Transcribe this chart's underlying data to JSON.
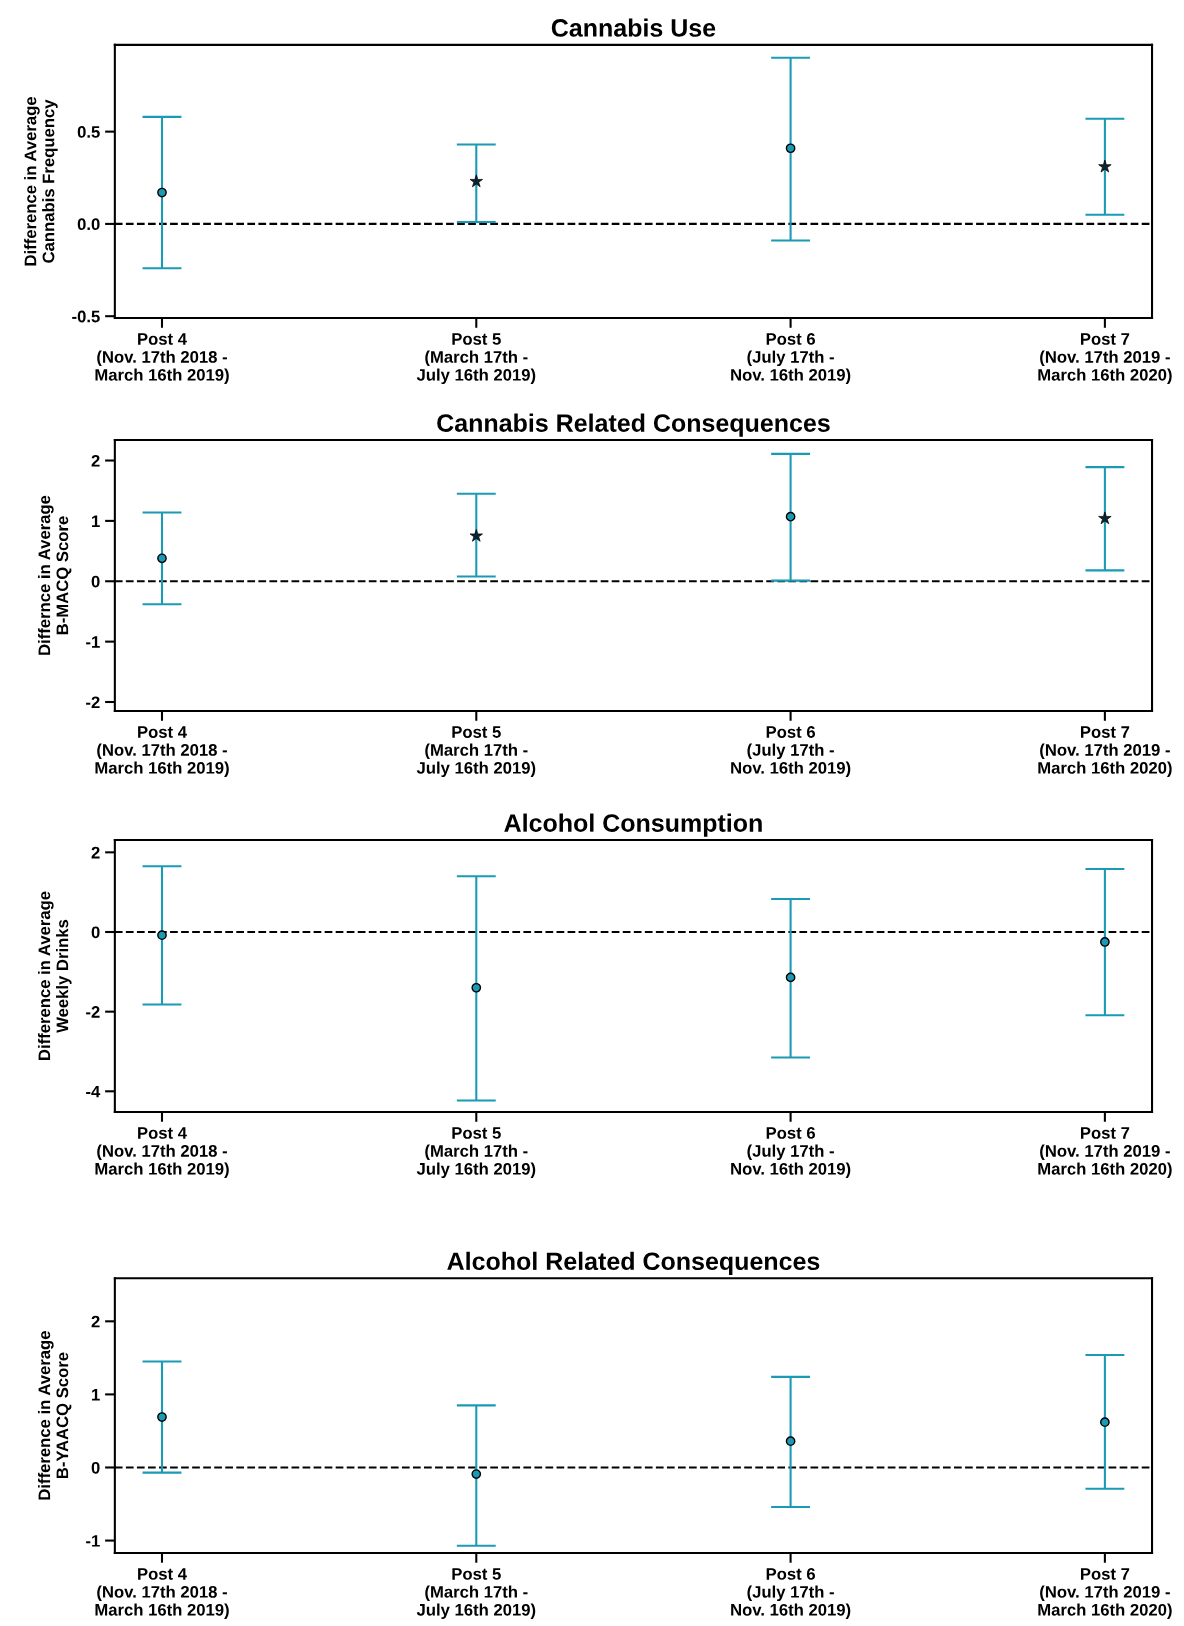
{
  "chart_data": [
    {
      "type": "scatter",
      "title": "Cannabis Use",
      "ylabel": "Difference in Average\nCannabis Frequency",
      "categories": [
        "Post 4\n(Nov. 17th 2018 -\nMarch 16th 2019)",
        "Post 5\n(March 17th -\nJuly 16th 2019)",
        "Post 6\n(July 17th -\nNov. 16th 2019)",
        "Post 7\n(Nov. 17th 2019 -\nMarch 16th 2020)"
      ],
      "series": [
        {
          "color": "#1a9ab4",
          "marker": "circle",
          "values": [
            0.17,
            null,
            0.41,
            null
          ],
          "errors": [
            [
              -0.24,
              0.58
            ],
            null,
            [
              -0.09,
              0.9
            ],
            null
          ]
        },
        {
          "color": "#0a2630",
          "marker": "star",
          "values": [
            null,
            0.23,
            null,
            0.31
          ],
          "errors": [
            null,
            [
              0.01,
              0.43
            ],
            null,
            [
              0.05,
              0.57
            ]
          ]
        }
      ],
      "ylim": [
        -0.51,
        0.97
      ],
      "yticks": [
        {
          "value": -0.5,
          "label": "-0.5"
        },
        {
          "value": 0,
          "label": "0.0"
        },
        {
          "value": 0.5,
          "label": "0.5"
        }
      ],
      "ref_lines": [
        {
          "axis": "y",
          "value": 0,
          "color": "#000000",
          "line_style": "dashed"
        }
      ],
      "grid": false,
      "legend": false
    },
    {
      "type": "scatter",
      "title": "Cannabis Related Consequences",
      "ylabel": "Differnce in Average\nB-MACQ Score",
      "categories": [
        "Post 4\n(Nov. 17th 2018 -\nMarch 16th 2019)",
        "Post 5\n(March 17th -\nJuly 16th 2019)",
        "Post 6\n(July 17th -\nNov. 16th 2019)",
        "Post 7\n(Nov. 17th 2019 -\nMarch 16th 2020)"
      ],
      "series": [
        {
          "color": "#1a9ab4",
          "marker": "circle",
          "values": [
            0.38,
            null,
            1.07,
            null
          ],
          "errors": [
            [
              -0.38,
              1.14
            ],
            null,
            [
              0.01,
              2.11
            ],
            null
          ]
        },
        {
          "color": "#0a2630",
          "marker": "star",
          "values": [
            null,
            0.75,
            null,
            1.04
          ],
          "errors": [
            null,
            [
              0.08,
              1.45
            ],
            null,
            [
              0.18,
              1.89
            ]
          ]
        }
      ],
      "ylim": [
        -2.15,
        2.34
      ],
      "yticks": [
        -2,
        -1,
        0,
        1,
        2
      ],
      "ref_lines": [
        {
          "axis": "y",
          "value": 0,
          "color": "#000000",
          "line_style": "dashed"
        }
      ],
      "grid": false,
      "legend": false
    },
    {
      "type": "scatter",
      "title": "Alcohol Consumption",
      "ylabel": "Difference in Average\nWeekly Drinks",
      "categories": [
        "Post 4\n(Nov. 17th 2018 -\nMarch 16th 2019)",
        "Post 5\n(March 17th -\nJuly 16th 2019)",
        "Post 6\n(July 17th -\nNov. 16th 2019)",
        "Post 7\n(Nov. 17th 2019 -\nMarch 16th 2020)"
      ],
      "series": [
        {
          "color": "#1a9ab4",
          "marker": "circle",
          "values": [
            -0.08,
            -1.4,
            -1.14,
            -0.25
          ],
          "errors": [
            [
              -1.82,
              1.65
            ],
            [
              -4.23,
              1.4
            ],
            [
              -3.15,
              0.83
            ],
            [
              -2.09,
              1.58
            ]
          ]
        }
      ],
      "ylim": [
        -4.52,
        2.31
      ],
      "yticks": [
        -4,
        -2,
        0,
        2
      ],
      "ref_lines": [
        {
          "axis": "y",
          "value": 0,
          "color": "#000000",
          "line_style": "dashed"
        }
      ],
      "grid": false,
      "legend": false
    },
    {
      "type": "scatter",
      "title": "Alcohol Related Consequences",
      "ylabel": "Difference in Average\nB-YAACQ Score",
      "categories": [
        "Post 4\n(Nov. 17th 2018 -\nMarch 16th 2019)",
        "Post 5\n(March 17th -\nJuly 16th 2019)",
        "Post 6\n(July 17th -\nNov. 16th 2019)",
        "Post 7\n(Nov. 17th 2019 -\nMarch 16th 2020)"
      ],
      "series": [
        {
          "color": "#1a9ab4",
          "marker": "circle",
          "values": [
            0.69,
            -0.09,
            0.36,
            0.62
          ],
          "errors": [
            [
              -0.07,
              1.45
            ],
            [
              -1.07,
              0.85
            ],
            [
              -0.54,
              1.24
            ],
            [
              -0.29,
              1.54
            ]
          ]
        }
      ],
      "ylim": [
        -1.17,
        2.59
      ],
      "yticks": [
        -1,
        0,
        1,
        2
      ],
      "ref_lines": [
        {
          "axis": "y",
          "value": 0,
          "color": "#000000",
          "line_style": "dashed"
        }
      ],
      "grid": false,
      "legend": false
    }
  ]
}
